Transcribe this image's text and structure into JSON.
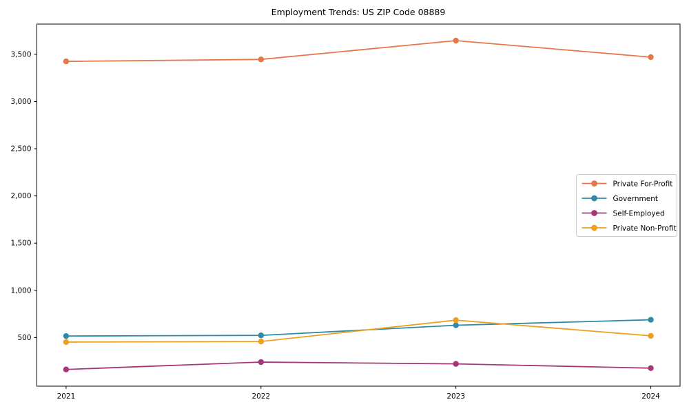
{
  "chart_data": {
    "type": "line",
    "title": "Employment Trends: US ZIP Code 08889",
    "xlabel": "",
    "ylabel": "",
    "x": [
      2021,
      2022,
      2023,
      2024
    ],
    "xticks": [
      2021,
      2022,
      2023,
      2024
    ],
    "yticks": [
      500,
      1000,
      1500,
      2000,
      2500,
      3000,
      3500
    ],
    "xlim": [
      2020.85,
      2024.15
    ],
    "ylim": [
      -15,
      3820
    ],
    "grid": false,
    "legend_position": "right-middle",
    "series": [
      {
        "name": "Private For-Profit",
        "color": "#e8764b",
        "values": [
          3425,
          3446,
          3645,
          3470
        ]
      },
      {
        "name": "Government",
        "color": "#2d8aa8",
        "values": [
          516,
          523,
          630,
          688
        ]
      },
      {
        "name": "Self-Employed",
        "color": "#a53778",
        "values": [
          162,
          240,
          221,
          176
        ]
      },
      {
        "name": "Private Non-Profit",
        "color": "#eda020",
        "values": [
          452,
          458,
          684,
          518
        ]
      }
    ],
    "colors": {
      "background": "#ffffff",
      "spine": "#000000",
      "tick_text": "#000000",
      "legend_border": "#cccccc"
    }
  }
}
